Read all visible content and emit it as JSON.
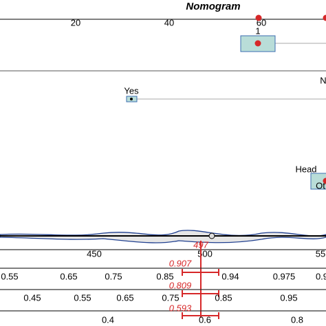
{
  "title": "Nomogram",
  "age_ticks": [
    "20",
    "40",
    "60"
  ],
  "group_label": "1",
  "yes_label": "Yes",
  "no_label": "N",
  "site_labels": [
    "Head",
    "Ot"
  ],
  "points_ticks": [
    "450",
    "500",
    "55"
  ],
  "total_points": "497",
  "prob_rows": [
    {
      "estimate": "0.907",
      "ticks": [
        "0.55",
        "0.65",
        "0.75",
        "0.85",
        "0.94",
        "0.975",
        "0.9"
      ]
    },
    {
      "estimate": "0.809",
      "ticks": [
        "0.45",
        "0.55",
        "0.65",
        "0.75",
        "0.85",
        "0.95"
      ]
    },
    {
      "estimate": "0.593",
      "ticks": [
        "0.4",
        "0.6",
        "0.8"
      ]
    }
  ]
}
